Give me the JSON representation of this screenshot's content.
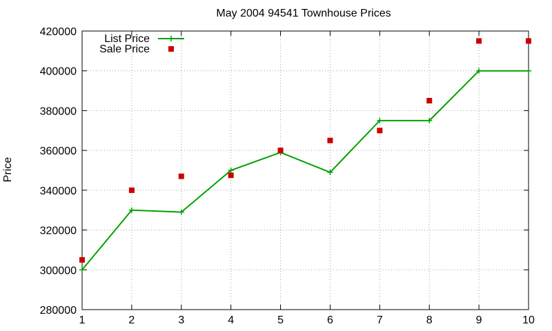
{
  "chart_data": {
    "type": "line",
    "title": "May 2004 94541 Townhouse Prices",
    "xlabel": "",
    "ylabel": "Price",
    "x": [
      1,
      2,
      3,
      4,
      5,
      6,
      7,
      8,
      9,
      10
    ],
    "xlim": [
      1,
      10
    ],
    "ylim": [
      280000,
      420000
    ],
    "xticks": [
      "1",
      "2",
      "3",
      "4",
      "5",
      "6",
      "7",
      "8",
      "9",
      "10"
    ],
    "yticks": [
      "280000",
      "300000",
      "320000",
      "340000",
      "360000",
      "380000",
      "400000",
      "420000"
    ],
    "grid": true,
    "legend_position": "top-left",
    "series": [
      {
        "name": "List Price",
        "style": "lines+points",
        "color": "#00a000",
        "values": [
          300000,
          330000,
          329000,
          350000,
          359000,
          349000,
          375000,
          375000,
          400000,
          400000
        ]
      },
      {
        "name": "Sale Price",
        "style": "points",
        "color": "#cc0000",
        "values": [
          305000,
          340000,
          347000,
          347500,
          360000,
          365000,
          370000,
          385000,
          415000,
          415000
        ]
      }
    ]
  }
}
